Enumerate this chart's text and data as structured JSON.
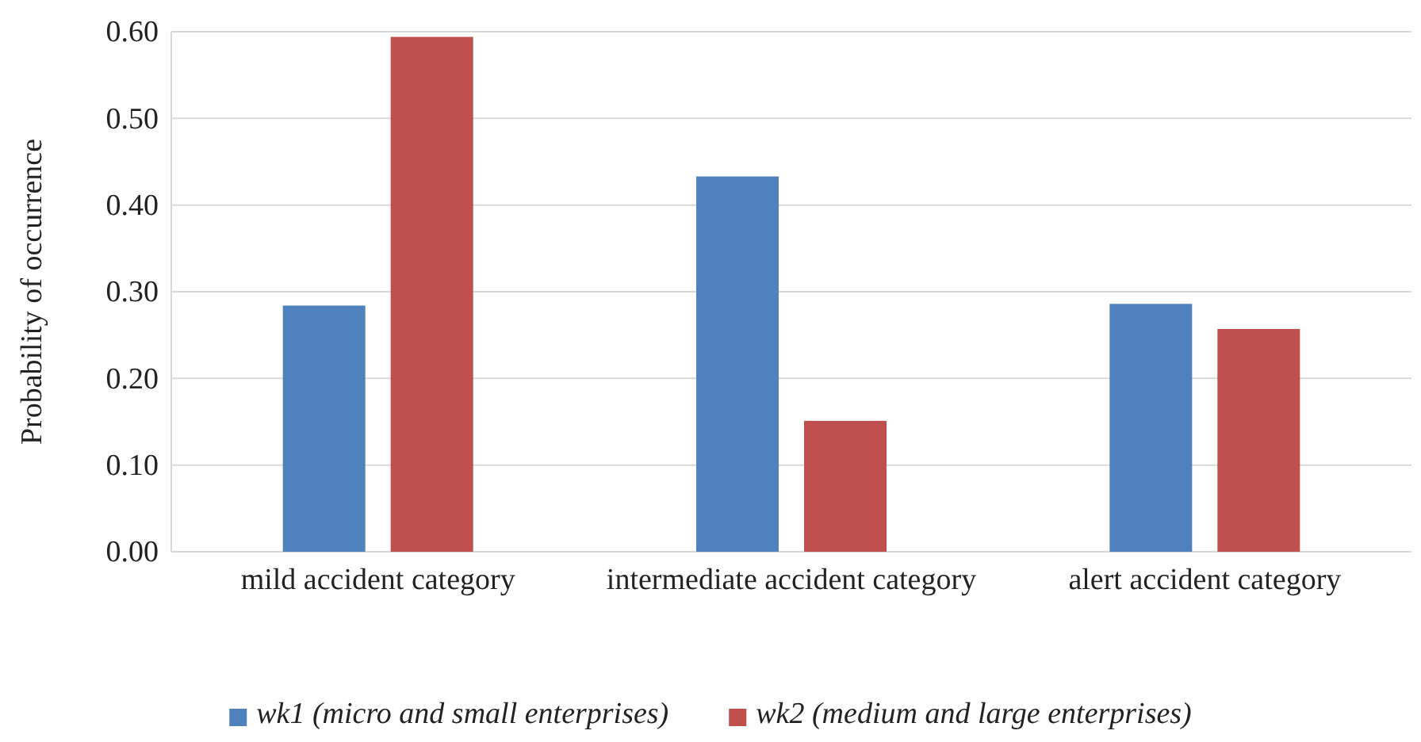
{
  "chart_data": {
    "type": "bar",
    "ylabel": "Probability of occurrence",
    "categories": [
      "mild accident category",
      "intermediate accident category",
      "alert accident category"
    ],
    "series": [
      {
        "name": "wk1 (micro and small enterprises)",
        "color": "#4f81bd",
        "values": [
          0.284,
          0.433,
          0.286
        ]
      },
      {
        "name": "wk2 (medium and large enterprises)",
        "color": "#c0504d",
        "values": [
          0.594,
          0.151,
          0.257
        ]
      }
    ],
    "ylim": [
      0,
      0.6
    ],
    "yticks": [
      {
        "value": 0,
        "label": "0.00"
      },
      {
        "value": 0.1,
        "label": "0.10"
      },
      {
        "value": 0.2,
        "label": "0.20"
      },
      {
        "value": 0.3,
        "label": "0.30"
      },
      {
        "value": 0.4,
        "label": "0.40"
      },
      {
        "value": 0.5,
        "label": "0.50"
      },
      {
        "value": 0.6,
        "label": "0.60"
      }
    ],
    "grid": "y",
    "legend": "bottom"
  }
}
